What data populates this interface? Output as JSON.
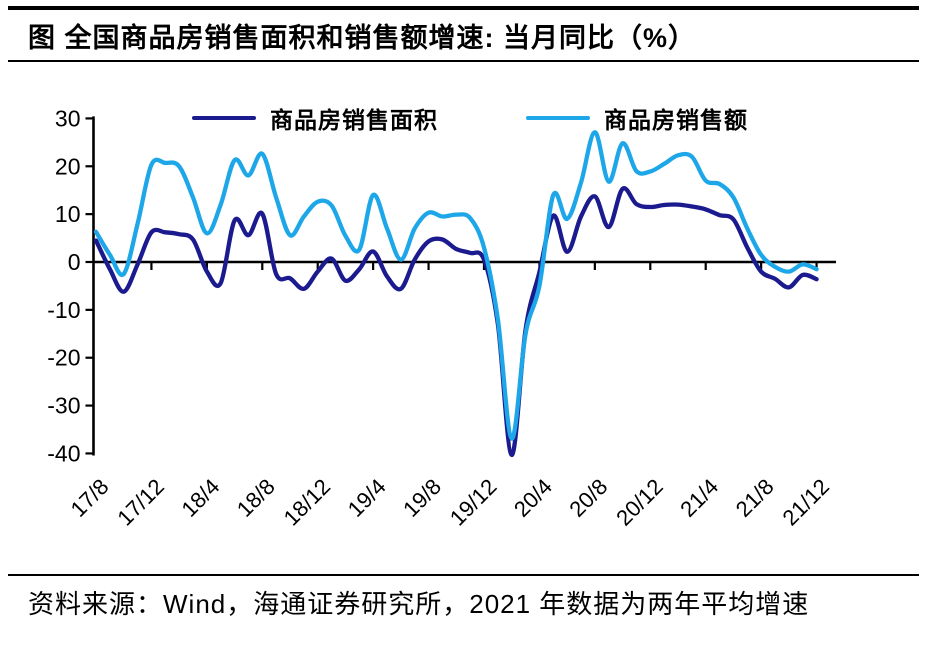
{
  "title": "图 全国商品房销售面积和销售额增速: 当月同比（%）",
  "legend": {
    "items": [
      {
        "label": "商品房销售面积",
        "color": "#1B1B8F"
      },
      {
        "label": "商品房销售额",
        "color": "#1EA7E8"
      }
    ]
  },
  "source": {
    "text": "资料来源：Wind，海通证券研究所，2021 年数据为两年平均增速"
  },
  "chart_data": {
    "type": "line",
    "title": "全国商品房销售面积和销售额增速: 当月同比（%）",
    "xlabel": "",
    "ylabel": "",
    "ylim": [
      -40,
      30
    ],
    "yticks": [
      30,
      20,
      10,
      0,
      -10,
      -20,
      -30,
      -40
    ],
    "grid": false,
    "legend_position": "top",
    "x": [
      "17/8",
      "17/9",
      "17/10",
      "17/11",
      "17/12",
      "18/1",
      "18/2",
      "18/3",
      "18/4",
      "18/5",
      "18/6",
      "18/7",
      "18/8",
      "18/9",
      "18/10",
      "18/11",
      "18/12",
      "19/1",
      "19/2",
      "19/3",
      "19/4",
      "19/5",
      "19/6",
      "19/7",
      "19/8",
      "19/9",
      "19/10",
      "19/11",
      "19/12",
      "20/1",
      "20/2",
      "20/3",
      "20/4",
      "20/5",
      "20/6",
      "20/7",
      "20/8",
      "20/9",
      "20/10",
      "20/11",
      "20/12",
      "21/1",
      "21/2",
      "21/3",
      "21/4",
      "21/5",
      "21/6",
      "21/7",
      "21/8",
      "21/9",
      "21/10",
      "21/11",
      "21/12"
    ],
    "x_tick_labels": [
      "17/8",
      "17/12",
      "18/4",
      "18/8",
      "18/12",
      "19/4",
      "19/8",
      "19/12",
      "20/4",
      "20/8",
      "20/12",
      "21/4",
      "21/8",
      "21/12"
    ],
    "x_tick_every": 4,
    "series": [
      {
        "name": "商品房销售面积",
        "color": "#1B1B8F",
        "values": [
          4.5,
          -1.5,
          -6.2,
          -0.5,
          6.2,
          6.2,
          5.8,
          4.7,
          -2.0,
          -4.4,
          8.7,
          5.6,
          10.1,
          -2.5,
          -3.4,
          -5.6,
          -2.0,
          0.7,
          -3.9,
          -1.5,
          2.2,
          -3.0,
          -5.6,
          0.5,
          4.3,
          4.7,
          2.7,
          1.9,
          0.5,
          -13.0,
          -40.3,
          -14.1,
          -2.1,
          9.7,
          2.1,
          9.5,
          13.7,
          7.3,
          15.3,
          12.1,
          11.5,
          11.9,
          12.0,
          11.6,
          11.0,
          9.8,
          8.9,
          3.0,
          -2.0,
          -3.5,
          -5.3,
          -2.7,
          -3.6
        ]
      },
      {
        "name": "商品房销售额",
        "color": "#1EA7E8",
        "values": [
          6.3,
          1.5,
          -2.5,
          8.0,
          20.3,
          20.7,
          20.0,
          13.5,
          6.0,
          12.0,
          21.3,
          18.1,
          22.6,
          13.5,
          5.6,
          9.5,
          12.6,
          11.8,
          5.5,
          2.6,
          14.0,
          7.0,
          0.5,
          7.0,
          10.3,
          9.5,
          9.9,
          9.2,
          3.0,
          -12.0,
          -36.9,
          -15.0,
          -5.0,
          14.0,
          9.0,
          16.6,
          27.1,
          16.8,
          24.8,
          19.0,
          18.9,
          20.5,
          22.3,
          22.0,
          17.0,
          16.3,
          13.5,
          7.0,
          1.5,
          -1.0,
          -2.0,
          -0.5,
          -1.5
        ]
      }
    ]
  }
}
